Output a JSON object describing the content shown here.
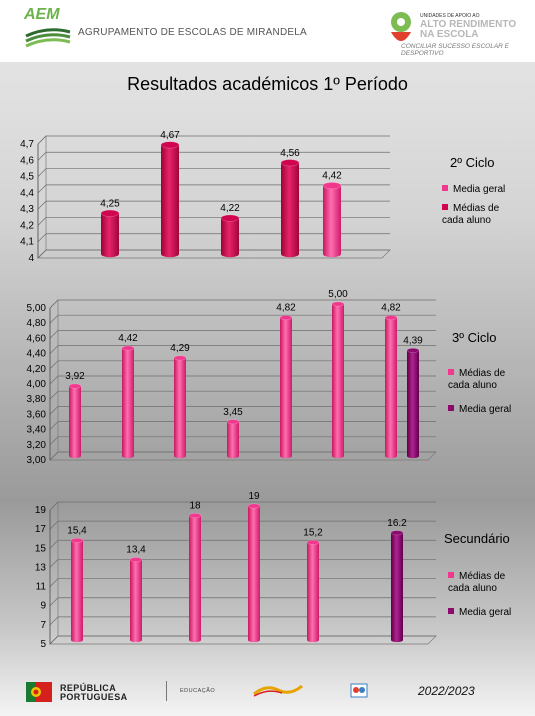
{
  "header": {
    "aem": "AEM",
    "school": "AGRUPAMENTO DE ESCOLAS DE MIRANDELA",
    "are_small": "UNIDADES DE APOIO AO",
    "are_line1": "ALTO RENDIMENTO",
    "are_line2": "NA ESCOLA",
    "are_sub": "CONCILIAR SUCESSO ESCOLAR E DESPORTIVO"
  },
  "footer": {
    "rep1": "REPÚBLICA",
    "rep2": "PORTUGUESA",
    "edu": "EDUCAÇÃO",
    "year": "2022/2023"
  },
  "colors": {
    "pink": "#f2388e",
    "crimson": "#d1054f",
    "purple": "#8a0a6e"
  },
  "chart_data": [
    {
      "type": "bar",
      "title": "Resultados académicos 1º Período",
      "section": "2º Ciclo",
      "ylim": [
        4,
        4.7
      ],
      "ticks": [
        "4",
        "4,1",
        "4,2",
        "4,3",
        "4,4",
        "4,5",
        "4,6",
        "4,7"
      ],
      "values": [
        4.25,
        4.67,
        4.22,
        4.56,
        4.42
      ],
      "labels": [
        "4,25",
        "4,67",
        "4,22",
        "4,56",
        "4,42"
      ],
      "series_of_bar": [
        1,
        1,
        1,
        1,
        0
      ],
      "series": [
        {
          "name": "Media geral",
          "color": "#f2388e"
        },
        {
          "name": "Médias de cada aluno",
          "color": "#d1054f"
        }
      ],
      "grid": true,
      "legend": "right"
    },
    {
      "type": "bar",
      "section": "3º Ciclo",
      "ylim": [
        3.0,
        5.0
      ],
      "ticks": [
        "3,00",
        "3,20",
        "3,40",
        "3,60",
        "3,80",
        "4,00",
        "4,20",
        "4,40",
        "4,60",
        "4,80",
        "5,00"
      ],
      "values": [
        3.92,
        4.42,
        4.29,
        3.45,
        4.82,
        5.0,
        4.82,
        4.39
      ],
      "labels": [
        "3,92",
        "4,42",
        "4,29",
        "3,45",
        "4,82",
        "5,00",
        "4,82",
        "4,39"
      ],
      "series_of_bar": [
        0,
        0,
        0,
        0,
        0,
        0,
        0,
        1
      ],
      "series": [
        {
          "name": "Médias de cada aluno",
          "color": "#f2388e"
        },
        {
          "name": "Media geral",
          "color": "#8a0a6e"
        }
      ],
      "grid": true,
      "legend": "right"
    },
    {
      "type": "bar",
      "section": "Secundário",
      "ylim": [
        5,
        19
      ],
      "ticks": [
        "5",
        "7",
        "9",
        "11",
        "13",
        "15",
        "17",
        "19"
      ],
      "values": [
        15.4,
        13.4,
        18,
        19,
        15.2,
        16.2
      ],
      "labels": [
        "15,4",
        "13,4",
        "18",
        "19",
        "15,2",
        "16.2"
      ],
      "series_of_bar": [
        0,
        0,
        0,
        0,
        0,
        1
      ],
      "series": [
        {
          "name": "Médias de cada aluno",
          "color": "#f2388e"
        },
        {
          "name": "Media geral",
          "color": "#8a0a6e"
        }
      ],
      "grid": true,
      "legend": "right"
    }
  ]
}
